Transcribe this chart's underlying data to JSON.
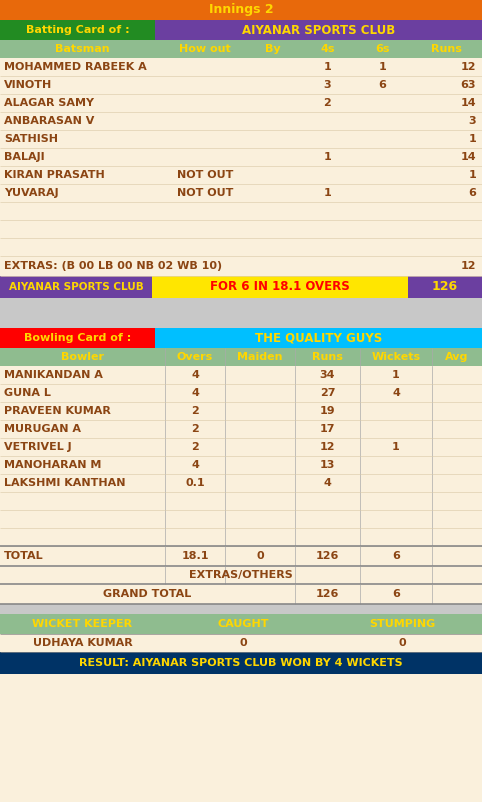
{
  "title": "Innings 2",
  "title_bg": "#E8690B",
  "title_color": "#FFD700",
  "batting_label": "Batting Card of :",
  "batting_team": "AIYANAR SPORTS CLUB",
  "batting_header_bg": "#6B3FA0",
  "batting_label_bg": "#228B22",
  "batting_team_color": "#FFD700",
  "batting_label_color": "#FFD700",
  "bat_col_headers": [
    "Batsman",
    "How out",
    "By",
    "4s",
    "6s",
    "Runs"
  ],
  "bat_col_header_bg": "#8FBC8F",
  "bat_col_header_color": "#FFD700",
  "batsmen": [
    [
      "MOHAMMED RABEEK A",
      "",
      "",
      "1",
      "1",
      "12"
    ],
    [
      "VINOTH",
      "",
      "",
      "3",
      "6",
      "63"
    ],
    [
      "ALAGAR SAMY",
      "",
      "",
      "2",
      "",
      "14"
    ],
    [
      "ANBARASAN V",
      "",
      "",
      "",
      "",
      "3"
    ],
    [
      "SATHISH",
      "",
      "",
      "",
      "",
      "1"
    ],
    [
      "BALAJI",
      "",
      "",
      "1",
      "",
      "14"
    ],
    [
      "KIRAN PRASATH",
      "NOT OUT",
      "",
      "",
      "",
      "1"
    ],
    [
      "YUVARAJ",
      "NOT OUT",
      "",
      "1",
      "",
      "6"
    ]
  ],
  "extras_text": "EXTRAS: (B 00 LB 00 NB 02 WB 10)",
  "extras_runs": "12",
  "summary_team": "AIYANAR SPORTS CLUB",
  "summary_middle": "FOR 6 IN 18.1 OVERS",
  "summary_score": "126",
  "summary_team_bg": "#6B3FA0",
  "summary_middle_bg": "#FFE600",
  "summary_score_bg": "#6B3FA0",
  "summary_team_color": "#FFD700",
  "summary_middle_color": "#FF0000",
  "summary_score_color": "#FFD700",
  "bowling_label": "Bowling Card of :",
  "bowling_team": "THE QUALITY GUYS",
  "bowling_label_bg": "#FF0000",
  "bowling_team_bg": "#00BFFF",
  "bowling_label_color": "#FFD700",
  "bowling_team_color": "#FFD700",
  "bowl_col_headers": [
    "Bowler",
    "Overs",
    "Maiden",
    "Runs",
    "Wickets",
    "Avg"
  ],
  "bowl_col_header_bg": "#8FBC8F",
  "bowl_col_header_color": "#FFD700",
  "bowlers": [
    [
      "MANIKANDAN A",
      "4",
      "",
      "34",
      "1",
      ""
    ],
    [
      "GUNA L",
      "4",
      "",
      "27",
      "4",
      ""
    ],
    [
      "PRAVEEN KUMAR",
      "2",
      "",
      "19",
      "",
      ""
    ],
    [
      "MURUGAN A",
      "2",
      "",
      "17",
      "",
      ""
    ],
    [
      "VETRIVEL J",
      "2",
      "",
      "12",
      "1",
      ""
    ],
    [
      "MANOHARAN M",
      "4",
      "",
      "13",
      "",
      ""
    ],
    [
      "LAKSHMI KANTHAN",
      "0.1",
      "",
      "4",
      "",
      ""
    ]
  ],
  "total_row": [
    "TOTAL",
    "18.1",
    "0",
    "126",
    "6",
    ""
  ],
  "extras_others_row": [
    "EXTRAS/OTHERS",
    "",
    "",
    "",
    "",
    ""
  ],
  "grand_total_row": [
    "GRAND TOTAL",
    "",
    "",
    "126",
    "6",
    ""
  ],
  "wk_header": [
    "WICKET KEEPER",
    "CAUGHT",
    "STUMPING"
  ],
  "wk_data": [
    "UDHAYA KUMAR",
    "0",
    "0"
  ],
  "wk_header_bg": "#8FBC8F",
  "wk_header_color": "#FFD700",
  "result_text": "RESULT: AIYANAR SPORTS CLUB WON BY 4 WICKETS",
  "result_bg": "#003366",
  "result_color": "#FFD700",
  "row_bg": "#FAF0DC",
  "row_color": "#8B4513",
  "separator_bg": "#C8C8C8"
}
